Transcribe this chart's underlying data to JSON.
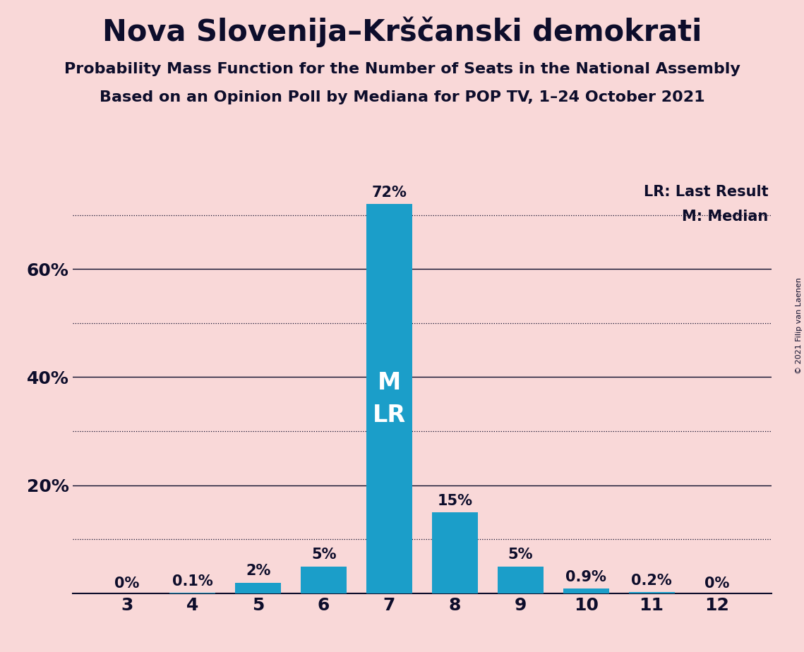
{
  "title": "Nova Slovenija–Krščanski demokrati",
  "subtitle1": "Probability Mass Function for the Number of Seats in the National Assembly",
  "subtitle2": "Based on an Opinion Poll by Mediana for POP TV, 1–24 October 2021",
  "seats": [
    3,
    4,
    5,
    6,
    7,
    8,
    9,
    10,
    11,
    12
  ],
  "probabilities": [
    0.0,
    0.1,
    2.0,
    5.0,
    72.0,
    15.0,
    5.0,
    0.9,
    0.2,
    0.0
  ],
  "bar_labels": [
    "0%",
    "0.1%",
    "2%",
    "5%",
    "72%",
    "15%",
    "5%",
    "0.9%",
    "0.2%",
    "0%"
  ],
  "bar_color": "#1B9EC9",
  "background_color": "#F9D8D8",
  "text_color": "#0D0D2B",
  "median_seat": 7,
  "last_result_seat": 7,
  "lr_label": "LR: Last Result",
  "m_label": "M: Median",
  "copyright": "© 2021 Filip van Laenen",
  "ylim": [
    0,
    76
  ],
  "solid_yticks": [
    20,
    40,
    60
  ],
  "solid_ytick_labels": [
    "20%",
    "40%",
    "60%"
  ],
  "dotted_yticks": [
    10,
    30,
    50,
    70
  ],
  "title_fontsize": 30,
  "subtitle_fontsize": 16,
  "axis_fontsize": 18,
  "bar_label_fontsize": 15,
  "legend_fontsize": 15,
  "ml_fontsize": 24
}
